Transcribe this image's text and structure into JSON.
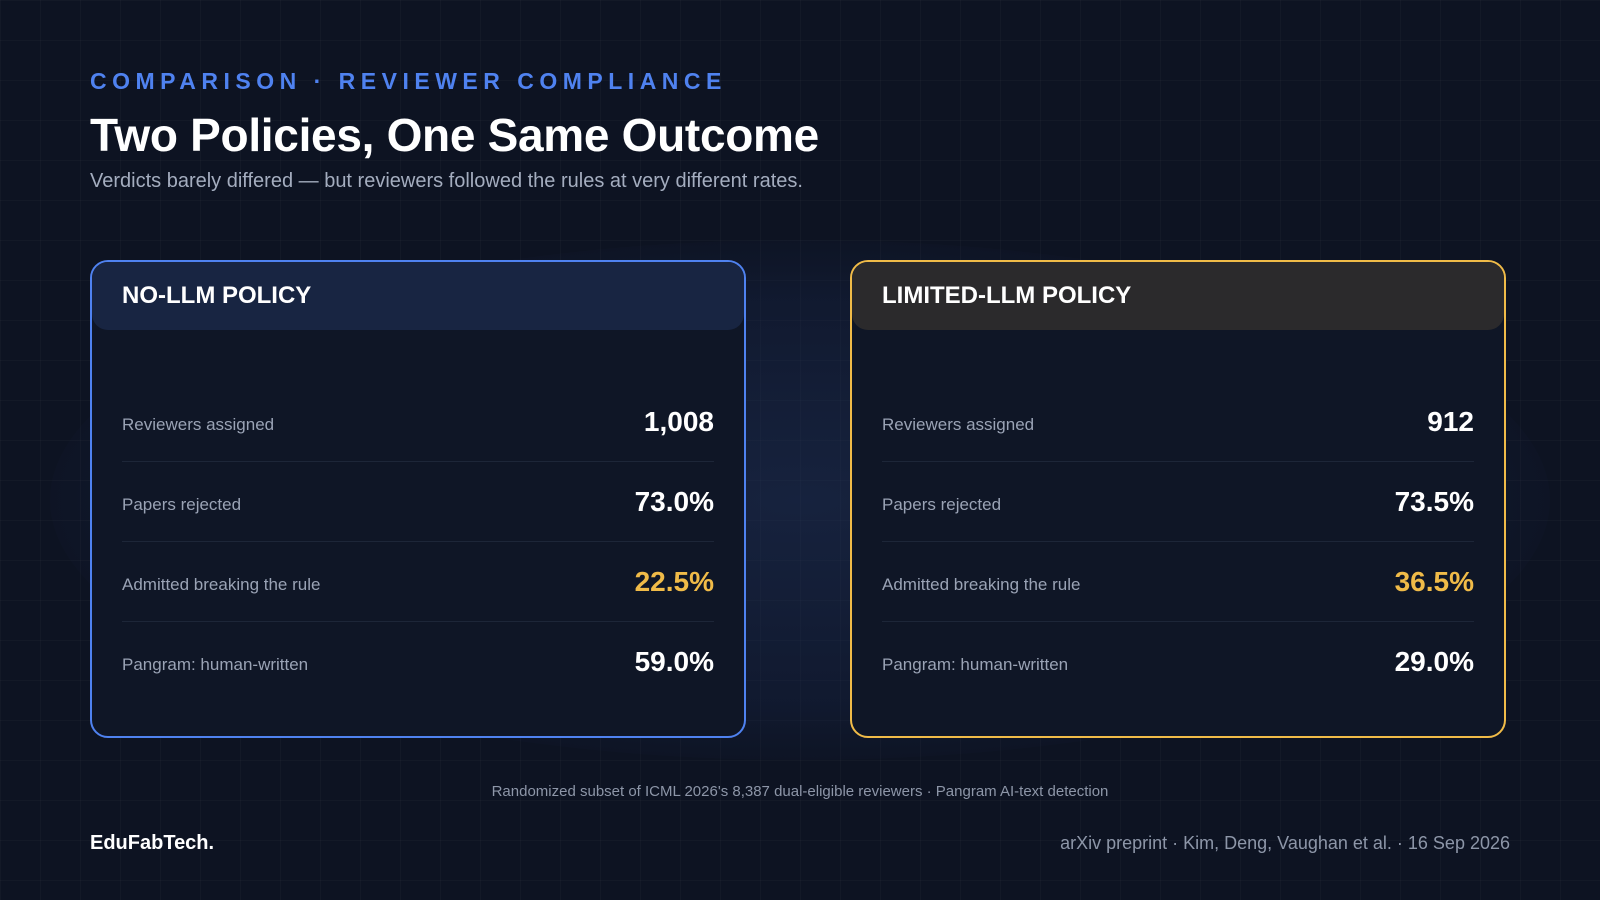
{
  "header": {
    "eyebrow": "COMPARISON · REVIEWER COMPLIANCE",
    "title": "Two Policies, One Same Outcome",
    "subtitle": "Verdicts barely differed — but reviewers followed the rules at very different rates."
  },
  "cards": [
    {
      "title": "NO-LLM POLICY",
      "accent_color": "#4f82f0",
      "rows": [
        {
          "label": "Reviewers assigned",
          "value": "1,008"
        },
        {
          "label": "Papers rejected",
          "value": "73.0%"
        },
        {
          "label": "Admitted breaking the rule",
          "value": "22.5%"
        },
        {
          "label": "Pangram: human-written",
          "value": "59.0%"
        }
      ]
    },
    {
      "title": "LIMITED-LLM POLICY",
      "accent_color": "#f0bb48",
      "rows": [
        {
          "label": "Reviewers assigned",
          "value": "912"
        },
        {
          "label": "Papers rejected",
          "value": "73.5%"
        },
        {
          "label": "Admitted breaking the rule",
          "value": "36.5%"
        },
        {
          "label": "Pangram: human-written",
          "value": "29.0%"
        }
      ]
    }
  ],
  "footnote": "Randomized subset of ICML 2026's 8,387 dual-eligible reviewers · Pangram AI-text detection",
  "footer": {
    "brand": "EduFabTech.",
    "citation": "arXiv preprint · Kim, Deng, Vaughan et al. · 16 Sep 2026"
  },
  "colors": {
    "background": "#0d1322",
    "eyebrow": "#4f82f0",
    "highlight": "#f0bb48"
  }
}
